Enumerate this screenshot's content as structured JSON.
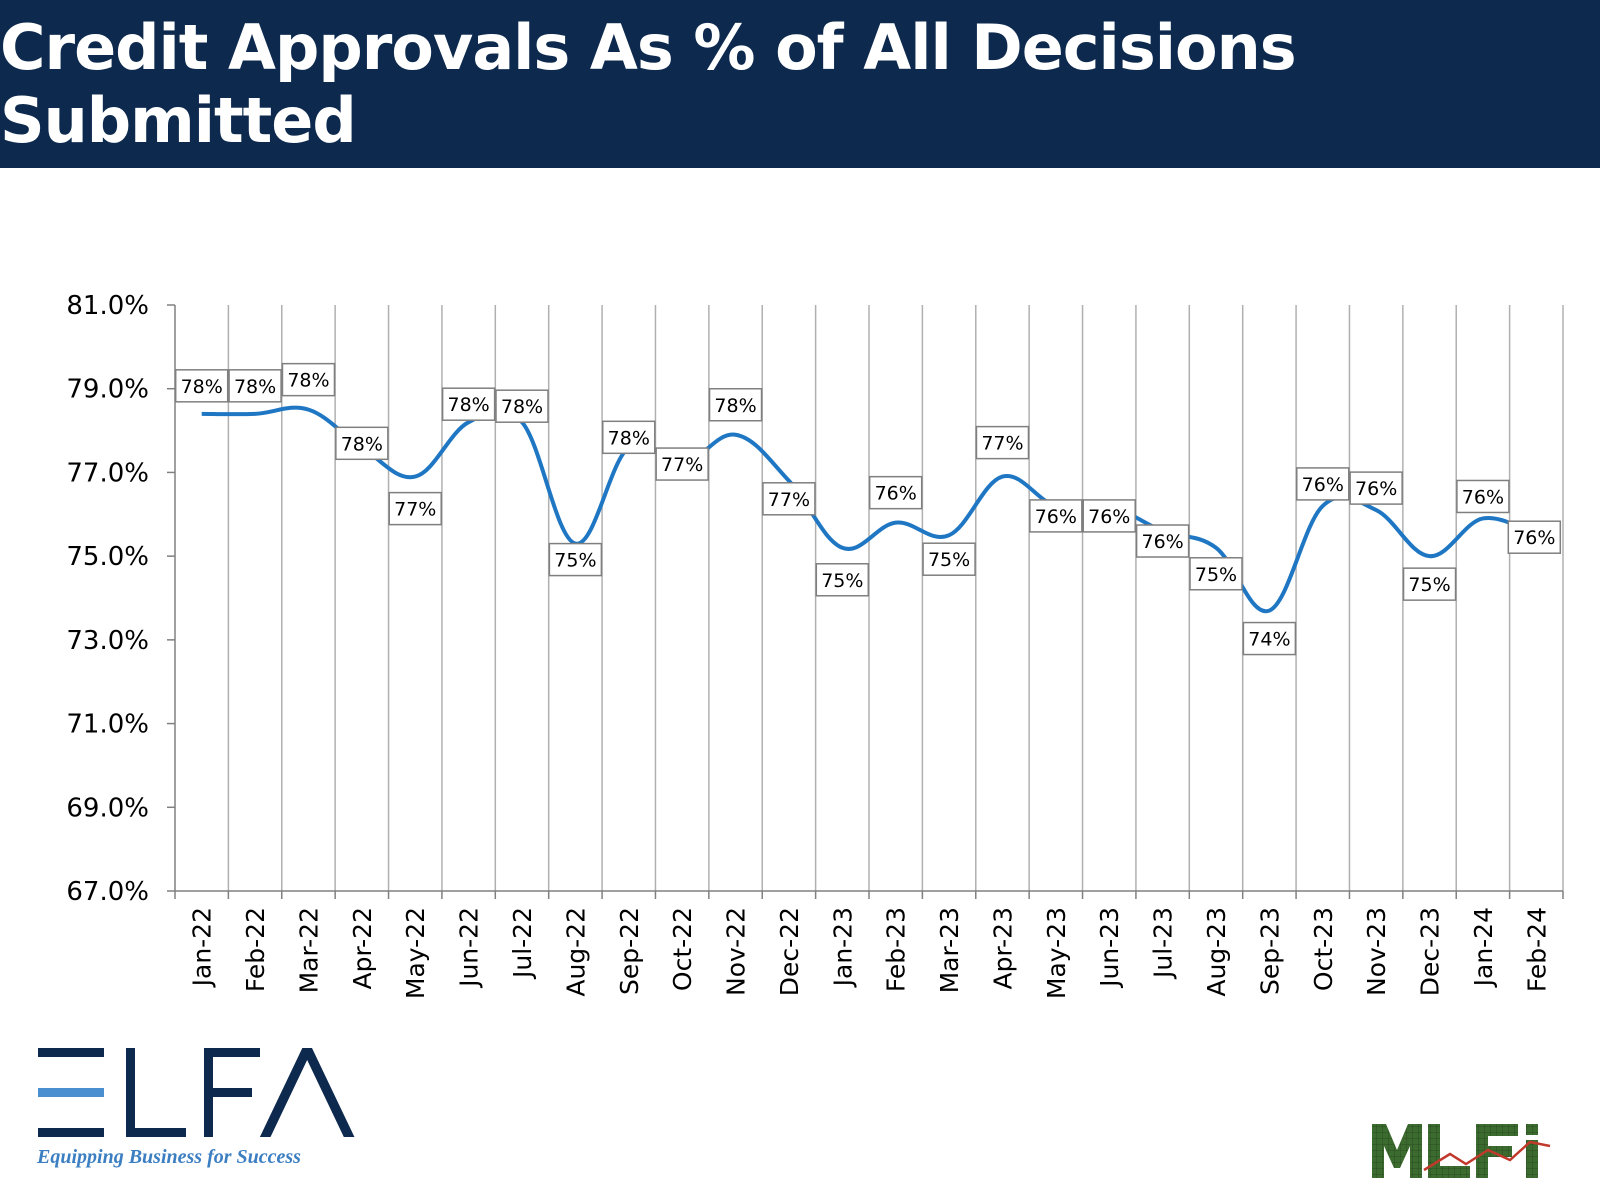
{
  "header": {
    "title": "Credit Approvals As % of All Decisions Submitted"
  },
  "branding": {
    "elfa_tagline": "Equipping Business for Success",
    "elfa_logo_icon": "elfa-logo",
    "mlfi_logo_icon": "mlfi-logo",
    "elfa_name": "ELFA",
    "mlfi_name": "MLFI"
  },
  "colors": {
    "header_bg": "#0d2a4e",
    "line": "#1f77c4",
    "grid": "#b0b0b0"
  },
  "chart_data": {
    "type": "line",
    "title": "Credit Approvals As % of All Decisions Submitted",
    "xlabel": "",
    "ylabel": "",
    "ylim": [
      67.0,
      81.0
    ],
    "yticks": [
      "67.0%",
      "69.0%",
      "71.0%",
      "73.0%",
      "75.0%",
      "77.0%",
      "79.0%",
      "81.0%"
    ],
    "grid": "vertical",
    "legend": "none",
    "categories": [
      "Jan-22",
      "Feb-22",
      "Mar-22",
      "Apr-22",
      "May-22",
      "Jun-22",
      "Jul-22",
      "Aug-22",
      "Sep-22",
      "Oct-22",
      "Nov-22",
      "Dec-22",
      "Jan-23",
      "Feb-23",
      "Mar-23",
      "Apr-23",
      "May-23",
      "Jun-23",
      "Jul-23",
      "Aug-23",
      "Sep-23",
      "Oct-23",
      "Nov-23",
      "Dec-23",
      "Jan-24",
      "Feb-24"
    ],
    "series": [
      {
        "values": [
          78.4,
          78.4,
          78.5,
          77.6,
          76.9,
          78.2,
          78.2,
          75.3,
          77.6,
          77.2,
          77.9,
          76.8,
          75.2,
          75.8,
          75.5,
          76.9,
          76.2,
          76.2,
          75.6,
          75.2,
          73.7,
          76.2,
          76.1,
          75.0,
          75.9,
          75.5
        ],
        "labels": [
          "78%",
          "78%",
          "78%",
          "78%",
          "77%",
          "78%",
          "78%",
          "75%",
          "78%",
          "77%",
          "78%",
          "77%",
          "75%",
          "76%",
          "75%",
          "77%",
          "76%",
          "76%",
          "76%",
          "75%",
          "74%",
          "76%",
          "76%",
          "75%",
          "76%",
          "76%"
        ]
      }
    ]
  }
}
